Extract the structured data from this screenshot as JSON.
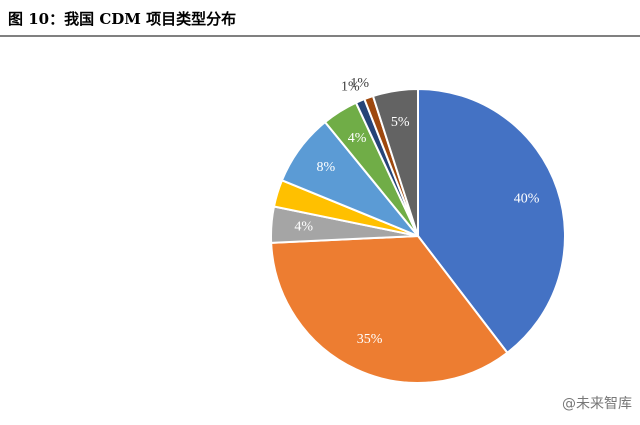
{
  "chart_data": {
    "type": "pie",
    "title": "图 10：我国 CDM 项目类型分布",
    "watermark": "@未来智库",
    "values": [
      40,
      35,
      4,
      3,
      8,
      4,
      1,
      1,
      5
    ],
    "value_labels": [
      "40%",
      "35%",
      "4%",
      null,
      "8%",
      "4%",
      "1%",
      "1%",
      "5%"
    ],
    "colors": [
      "#4472c4",
      "#ed7d31",
      "#a5a5a5",
      "#ffc000",
      "#5b9bd5",
      "#70ad47",
      "#264478",
      "#9e480e",
      "#636363"
    ]
  }
}
